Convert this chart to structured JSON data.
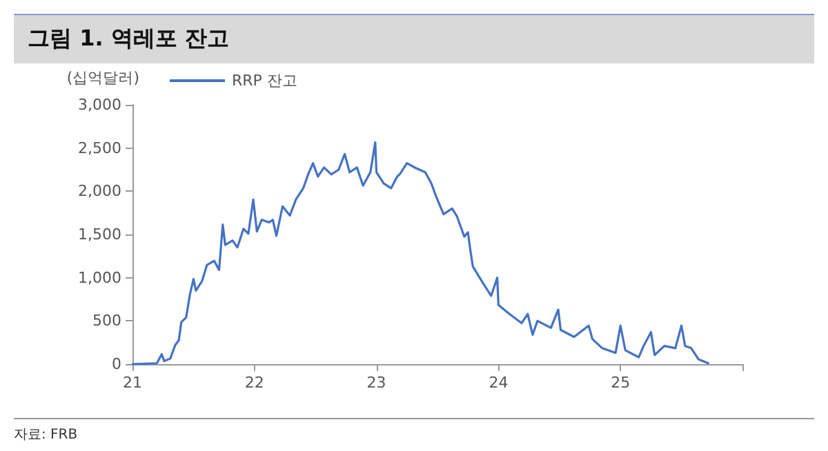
{
  "chart_data": {
    "type": "line",
    "title": "그림 1. 역레포 잔고",
    "ylabel": "(십억달러)",
    "annotations": [
      "자료: FRB"
    ],
    "legend": "top left",
    "grid": false,
    "marker": "none",
    "line_style": "solid",
    "xlim": [
      21,
      26
    ],
    "xticks": [
      21,
      22,
      23,
      24,
      25,
      {
        "value": 26,
        "label": null
      }
    ],
    "ylim": [
      0,
      3000
    ],
    "yticks": [
      0,
      500,
      {
        "value": 1000,
        "label": "1,000"
      },
      {
        "value": 1500,
        "label": "1,500"
      },
      {
        "value": 2000,
        "label": "2,000"
      },
      {
        "value": 2500,
        "label": "2,500"
      },
      {
        "value": 3000,
        "label": "3,000"
      }
    ],
    "series": [
      {
        "name": "RRP 잔고",
        "color": "#4472c4",
        "x": [
          21.0,
          21.2,
          21.24,
          21.26,
          21.31,
          21.35,
          21.38,
          21.4,
          21.44,
          21.47,
          21.5,
          21.52,
          21.57,
          21.61,
          21.67,
          21.71,
          21.74,
          21.76,
          21.82,
          21.86,
          21.91,
          21.95,
          21.99,
          22.02,
          22.06,
          22.12,
          22.15,
          22.18,
          22.23,
          22.29,
          22.34,
          22.4,
          22.44,
          22.48,
          22.52,
          22.57,
          22.63,
          22.69,
          22.74,
          22.78,
          22.84,
          22.89,
          22.95,
          22.99,
          23.0,
          23.06,
          23.12,
          23.17,
          23.19,
          23.25,
          23.32,
          23.4,
          23.45,
          23.49,
          23.55,
          23.62,
          23.66,
          23.72,
          23.75,
          23.77,
          23.79,
          23.87,
          23.94,
          23.99,
          24.0,
          24.09,
          24.19,
          24.24,
          24.28,
          24.32,
          24.43,
          24.49,
          24.51,
          24.62,
          24.74,
          24.77,
          24.85,
          24.96,
          25.0,
          25.04,
          25.15,
          25.19,
          25.25,
          25.28,
          25.36,
          25.45,
          25.5,
          25.53,
          25.58,
          25.64,
          25.72
        ],
        "values": [
          0,
          10,
          115,
          35,
          65,
          220,
          275,
          485,
          540,
          800,
          985,
          850,
          960,
          1145,
          1195,
          1090,
          1615,
          1380,
          1430,
          1350,
          1565,
          1510,
          1905,
          1535,
          1670,
          1640,
          1670,
          1485,
          1825,
          1720,
          1905,
          2035,
          2195,
          2325,
          2170,
          2275,
          2195,
          2250,
          2430,
          2220,
          2275,
          2065,
          2220,
          2565,
          2220,
          2090,
          2035,
          2170,
          2195,
          2325,
          2270,
          2220,
          2090,
          1935,
          1735,
          1800,
          1710,
          1475,
          1525,
          1315,
          1130,
          945,
          790,
          1000,
          685,
          580,
          475,
          580,
          340,
          500,
          420,
          630,
          395,
          315,
          445,
          290,
          185,
          130,
          445,
          160,
          80,
          210,
          370,
          105,
          210,
          185,
          445,
          210,
          185,
          55,
          10
        ]
      }
    ]
  }
}
